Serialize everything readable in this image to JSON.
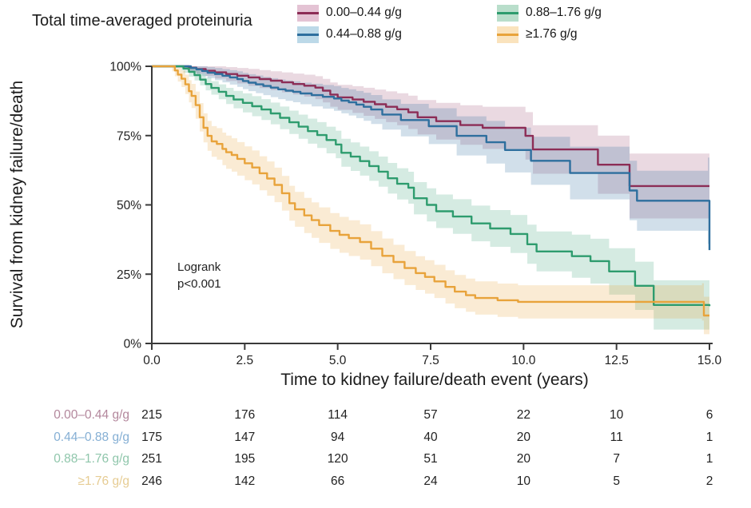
{
  "title": "Total time-averaged proteinuria",
  "annotation": {
    "line1": "Logrank",
    "line2": "p<0.001"
  },
  "legend": {
    "items": [
      {
        "id": "group-1",
        "label": "0.00–0.44 g/g",
        "line_color": "#8C2D56",
        "band_color": "#E4C3D4"
      },
      {
        "id": "group-2",
        "label": "0.44–0.88 g/g",
        "line_color": "#2E6F9E",
        "band_color": "#BCD9E8"
      },
      {
        "id": "group-3",
        "label": "0.88–1.76 g/g",
        "line_color": "#2E9C6E",
        "band_color": "#B9DECB"
      },
      {
        "id": "group-4",
        "label": "≥1.76 g/g",
        "line_color": "#E8A33B",
        "band_color": "#FAE3BD"
      }
    ]
  },
  "chart_data": {
    "type": "line",
    "subtype": "kaplan-meier-step",
    "title": "Total time-averaged proteinuria",
    "xlabel": "Time to kidney failure/death event (years)",
    "ylabel": "Survival from kidney failure/death",
    "xlim": [
      0,
      15
    ],
    "ylim": [
      0,
      100
    ],
    "x_ticks": {
      "values": [
        0,
        2.5,
        5,
        7.5,
        10,
        12.5,
        15
      ],
      "labels": [
        "0.0",
        "2.5",
        "5.0",
        "7.5",
        "10.0",
        "12.5",
        "15.0"
      ]
    },
    "y_ticks": {
      "values": [
        0,
        25,
        50,
        75,
        100
      ],
      "labels": [
        "0%",
        "25%",
        "50%",
        "75%",
        "100%"
      ]
    },
    "grid": false,
    "legend_position": "top",
    "annotation": "Logrank p<0.001",
    "series": [
      {
        "name": "0.00–0.44 g/g",
        "color": "#8C2D56",
        "band_opacity": 0.18,
        "points": [
          [
            0,
            100
          ],
          [
            0.95,
            100
          ],
          [
            1.0,
            99.5
          ],
          [
            1.2,
            99
          ],
          [
            1.45,
            98.4
          ],
          [
            1.7,
            97.8
          ],
          [
            2.0,
            97.2
          ],
          [
            2.3,
            96.6
          ],
          [
            2.6,
            96
          ],
          [
            2.9,
            95.4
          ],
          [
            3.2,
            94.8
          ],
          [
            3.5,
            94.2
          ],
          [
            3.8,
            93.6
          ],
          [
            4.1,
            93
          ],
          [
            4.4,
            92.3
          ],
          [
            4.6,
            91.2
          ],
          [
            4.8,
            89.8
          ],
          [
            5.0,
            88.8
          ],
          [
            5.4,
            88
          ],
          [
            5.7,
            87.2
          ],
          [
            6.0,
            86.3
          ],
          [
            6.3,
            85.4
          ],
          [
            6.6,
            84.5
          ],
          [
            6.9,
            83.4
          ],
          [
            7.15,
            81.6
          ],
          [
            7.65,
            80.2
          ],
          [
            8.3,
            78.8
          ],
          [
            8.9,
            77.8
          ],
          [
            10.05,
            74.9
          ],
          [
            10.25,
            70.0
          ],
          [
            12.0,
            64.5
          ],
          [
            12.85,
            56.8
          ],
          [
            15,
            56.8
          ]
        ],
        "band": [
          [
            0,
            0
          ],
          [
            1,
            1.5
          ],
          [
            2.5,
            3
          ],
          [
            5,
            4.5
          ],
          [
            7.5,
            6.5
          ],
          [
            10,
            8.5
          ],
          [
            12.5,
            11
          ],
          [
            15,
            16
          ]
        ]
      },
      {
        "name": "0.44–0.88 g/g",
        "color": "#2E6F9E",
        "band_opacity": 0.22,
        "points": [
          [
            0,
            100
          ],
          [
            1.0,
            100
          ],
          [
            1.05,
            99.4
          ],
          [
            1.2,
            98.9
          ],
          [
            1.35,
            98.3
          ],
          [
            1.5,
            97.7
          ],
          [
            1.7,
            97.2
          ],
          [
            1.9,
            96.6
          ],
          [
            2.1,
            96.0
          ],
          [
            2.3,
            95.4
          ],
          [
            2.45,
            94.7
          ],
          [
            2.6,
            94.1
          ],
          [
            2.8,
            93.5
          ],
          [
            3.0,
            92.9
          ],
          [
            3.2,
            92.3
          ],
          [
            3.4,
            91.7
          ],
          [
            3.6,
            91.2
          ],
          [
            3.8,
            90.8
          ],
          [
            4.0,
            90.2
          ],
          [
            4.3,
            89.6
          ],
          [
            4.6,
            89.0
          ],
          [
            4.9,
            88.4
          ],
          [
            5.1,
            87.6
          ],
          [
            5.3,
            87.0
          ],
          [
            5.5,
            86.2
          ],
          [
            5.7,
            85.4
          ],
          [
            5.9,
            84.4
          ],
          [
            6.2,
            82.6
          ],
          [
            6.7,
            80.6
          ],
          [
            7.45,
            78.4
          ],
          [
            8.2,
            74.9
          ],
          [
            9.0,
            72.6
          ],
          [
            9.5,
            69.8
          ],
          [
            10.2,
            65.9
          ],
          [
            11.25,
            61.5
          ],
          [
            12.85,
            55.2
          ],
          [
            13.05,
            51.5
          ],
          [
            14.96,
            51.5
          ],
          [
            15,
            33.7
          ]
        ],
        "band": [
          [
            0,
            0
          ],
          [
            1,
            1.5
          ],
          [
            2.5,
            3
          ],
          [
            5,
            4.5
          ],
          [
            7.5,
            6.5
          ],
          [
            10,
            8.5
          ],
          [
            12.5,
            10.5
          ],
          [
            14.9,
            12
          ],
          [
            15,
            18
          ]
        ]
      },
      {
        "name": "0.88–1.76 g/g",
        "color": "#2E9C6E",
        "band_opacity": 0.2,
        "points": [
          [
            0,
            100
          ],
          [
            0.8,
            100
          ],
          [
            0.85,
            99.2
          ],
          [
            1.0,
            98.0
          ],
          [
            1.15,
            96.8
          ],
          [
            1.3,
            95.2
          ],
          [
            1.45,
            93.6
          ],
          [
            1.6,
            92.2
          ],
          [
            1.8,
            90.8
          ],
          [
            2.0,
            89.3
          ],
          [
            2.2,
            88.0
          ],
          [
            2.45,
            86.8
          ],
          [
            2.7,
            85.6
          ],
          [
            2.95,
            84.4
          ],
          [
            3.2,
            83.0
          ],
          [
            3.45,
            81.4
          ],
          [
            3.7,
            79.8
          ],
          [
            3.95,
            78.2
          ],
          [
            4.2,
            76.6
          ],
          [
            4.45,
            75.2
          ],
          [
            4.7,
            73.4
          ],
          [
            4.95,
            71.8
          ],
          [
            5.1,
            68.8
          ],
          [
            5.35,
            67.4
          ],
          [
            5.6,
            65.8
          ],
          [
            5.85,
            64.0
          ],
          [
            6.1,
            62.0
          ],
          [
            6.35,
            59.6
          ],
          [
            6.6,
            57.6
          ],
          [
            6.9,
            56.2
          ],
          [
            7.05,
            52.4
          ],
          [
            7.4,
            50.0
          ],
          [
            7.65,
            47.7
          ],
          [
            8.1,
            45.8
          ],
          [
            8.6,
            43.3
          ],
          [
            9.1,
            41.5
          ],
          [
            9.65,
            39.5
          ],
          [
            10.1,
            35.8
          ],
          [
            10.35,
            33.2
          ],
          [
            11.3,
            31.5
          ],
          [
            11.8,
            29.7
          ],
          [
            12.3,
            26.0
          ],
          [
            13.0,
            20.8
          ],
          [
            13.5,
            13.9
          ],
          [
            15,
            13.5
          ]
        ],
        "band": [
          [
            0,
            0
          ],
          [
            0.8,
            1.5
          ],
          [
            2.5,
            3.5
          ],
          [
            5,
            5
          ],
          [
            7.5,
            6
          ],
          [
            10,
            7
          ],
          [
            12.5,
            8.5
          ],
          [
            15,
            9.5
          ]
        ]
      },
      {
        "name": "≥1.76 g/g",
        "color": "#E8A33B",
        "band_opacity": 0.22,
        "points": [
          [
            0,
            100
          ],
          [
            0.55,
            100
          ],
          [
            0.62,
            98.5
          ],
          [
            0.7,
            97
          ],
          [
            0.8,
            95.5
          ],
          [
            0.9,
            93.5
          ],
          [
            1.0,
            91
          ],
          [
            1.07,
            89.3
          ],
          [
            1.18,
            86
          ],
          [
            1.29,
            81.6
          ],
          [
            1.39,
            77.8
          ],
          [
            1.5,
            74.9
          ],
          [
            1.61,
            72.9
          ],
          [
            1.75,
            72.0
          ],
          [
            1.9,
            70.2
          ],
          [
            2.0,
            69.0
          ],
          [
            2.15,
            68.0
          ],
          [
            2.3,
            66.6
          ],
          [
            2.5,
            65.0
          ],
          [
            2.7,
            63.5
          ],
          [
            2.9,
            61.4
          ],
          [
            3.1,
            59.5
          ],
          [
            3.3,
            57.2
          ],
          [
            3.5,
            54.2
          ],
          [
            3.7,
            50.6
          ],
          [
            3.85,
            48.4
          ],
          [
            4.1,
            46.2
          ],
          [
            4.3,
            44.5
          ],
          [
            4.5,
            42.7
          ],
          [
            4.8,
            40.6
          ],
          [
            5.05,
            39.2
          ],
          [
            5.3,
            38.0
          ],
          [
            5.6,
            36.6
          ],
          [
            5.9,
            34.2
          ],
          [
            6.2,
            31.6
          ],
          [
            6.5,
            29.4
          ],
          [
            6.8,
            27.2
          ],
          [
            7.1,
            25.4
          ],
          [
            7.35,
            24.0
          ],
          [
            7.6,
            22.4
          ],
          [
            7.9,
            20.4
          ],
          [
            8.15,
            18.7
          ],
          [
            8.45,
            17.4
          ],
          [
            8.7,
            16.4
          ],
          [
            9.3,
            15.6
          ],
          [
            9.85,
            15.0
          ],
          [
            14.8,
            15.0
          ],
          [
            14.85,
            10.1
          ],
          [
            15,
            10.1
          ]
        ],
        "band": [
          [
            0,
            0
          ],
          [
            0.6,
            2
          ],
          [
            1.2,
            5
          ],
          [
            2,
            6
          ],
          [
            5,
            6.5
          ],
          [
            7.5,
            6
          ],
          [
            12.5,
            6
          ],
          [
            15,
            6.8
          ]
        ]
      }
    ]
  },
  "risk_table": {
    "rows": [
      {
        "label": "0.00–0.44 g/g",
        "color": "#B3879C",
        "values": [
          "215",
          "176",
          "114",
          "57",
          "22",
          "10",
          "6"
        ]
      },
      {
        "label": "0.44–0.88 g/g",
        "color": "#85AFD4",
        "values": [
          "175",
          "147",
          "94",
          "40",
          "20",
          "11",
          "1"
        ]
      },
      {
        "label": "0.88–1.76 g/g",
        "color": "#8FC6AB",
        "values": [
          "251",
          "195",
          "120",
          "51",
          "20",
          "7",
          "1"
        ]
      },
      {
        "label": "≥1.76 g/g",
        "color": "#E6CC93",
        "values": [
          "246",
          "142",
          "66",
          "24",
          "10",
          "5",
          "2"
        ]
      }
    ]
  }
}
